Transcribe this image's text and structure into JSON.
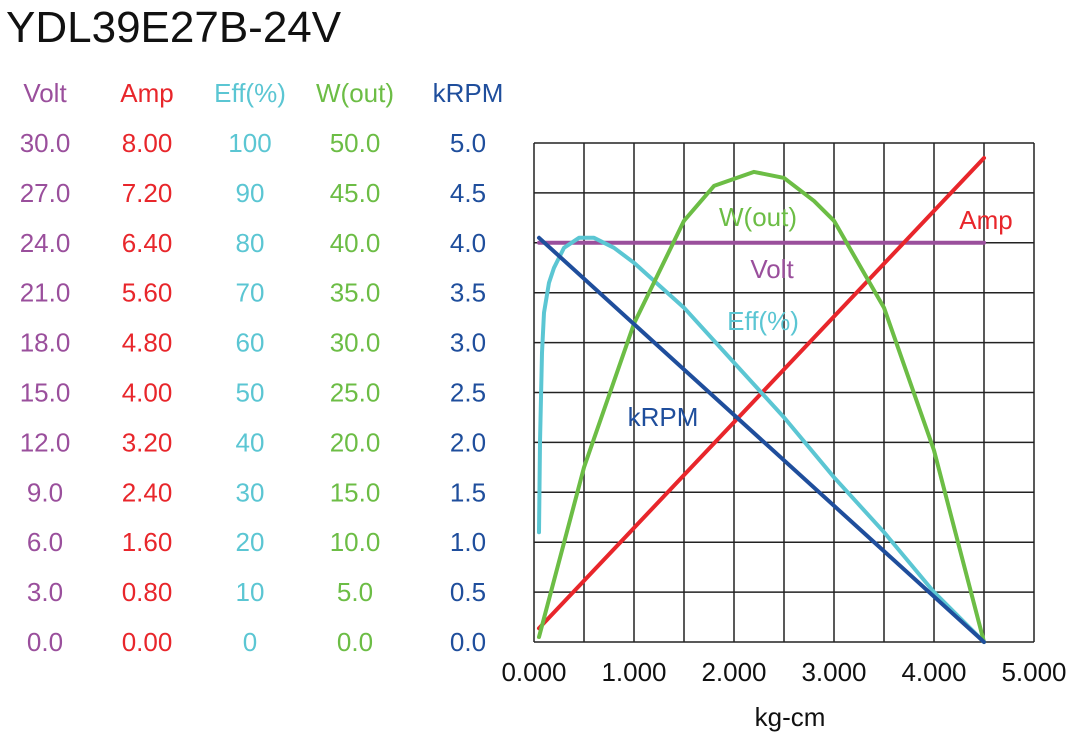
{
  "chart_data": {
    "type": "line",
    "title": "YDL39E27B-24V",
    "xlabel": "kg-cm",
    "xlim": [
      0,
      5
    ],
    "x_ticks": [
      "0.000",
      "1.000",
      "2.000",
      "3.000",
      "4.000",
      "5.000"
    ],
    "grid": true,
    "axes": [
      {
        "name": "Volt",
        "color": "#9a4f9c",
        "ylim": [
          0,
          30
        ],
        "ticks": [
          "30.0",
          "27.0",
          "24.0",
          "21.0",
          "18.0",
          "15.0",
          "12.0",
          "9.0",
          "6.0",
          "3.0",
          "0.0"
        ]
      },
      {
        "name": "Amp",
        "color": "#e8262b",
        "ylim": [
          0,
          8
        ],
        "ticks": [
          "8.00",
          "7.20",
          "6.40",
          "5.60",
          "4.80",
          "4.00",
          "3.20",
          "2.40",
          "1.60",
          "0.80",
          "0.00"
        ]
      },
      {
        "name": "Eff(%)",
        "color": "#5bc6d3",
        "ylim": [
          0,
          100
        ],
        "ticks": [
          "100",
          "90",
          "80",
          "70",
          "60",
          "50",
          "40",
          "30",
          "20",
          "10",
          "0"
        ]
      },
      {
        "name": "W(out)",
        "color": "#6cbd45",
        "ylim": [
          0,
          50
        ],
        "ticks": [
          "50.0",
          "45.0",
          "40.0",
          "35.0",
          "30.0",
          "25.0",
          "20.0",
          "15.0",
          "10.0",
          "5.0",
          "0.0"
        ]
      },
      {
        "name": "kRPM",
        "color": "#1f4e9c",
        "ylim": [
          0,
          5
        ],
        "ticks": [
          "5.0",
          "4.5",
          "4.0",
          "3.5",
          "3.0",
          "2.5",
          "2.0",
          "1.5",
          "1.0",
          "0.5",
          "0.0"
        ]
      }
    ],
    "series": [
      {
        "name": "Volt",
        "axis": 0,
        "x": [
          0.05,
          4.5
        ],
        "y": [
          24.0,
          24.0
        ]
      },
      {
        "name": "Amp",
        "axis": 1,
        "x": [
          0.05,
          4.5
        ],
        "y": [
          0.22,
          7.76
        ]
      },
      {
        "name": "Eff(%)",
        "axis": 2,
        "x": [
          0.05,
          0.06,
          0.08,
          0.1,
          0.15,
          0.2,
          0.3,
          0.45,
          0.6,
          0.8,
          1.0,
          1.5,
          2.0,
          2.5,
          3.0,
          3.5,
          4.0,
          4.5
        ],
        "y": [
          22,
          40,
          58,
          66,
          72,
          75,
          79,
          81,
          81,
          79,
          76,
          67,
          56,
          45,
          33,
          22,
          10,
          0
        ]
      },
      {
        "name": "W(out)",
        "axis": 3,
        "x": [
          0.05,
          0.5,
          1.0,
          1.5,
          1.8,
          2.2,
          2.5,
          2.8,
          3.0,
          3.5,
          4.0,
          4.5
        ],
        "y": [
          0.5,
          17.5,
          31.9,
          42.2,
          45.7,
          47.1,
          46.5,
          44.2,
          42.2,
          33.5,
          19.2,
          0
        ]
      },
      {
        "name": "kRPM",
        "axis": 4,
        "x": [
          0.05,
          4.5
        ],
        "y": [
          4.05,
          0
        ]
      }
    ]
  }
}
